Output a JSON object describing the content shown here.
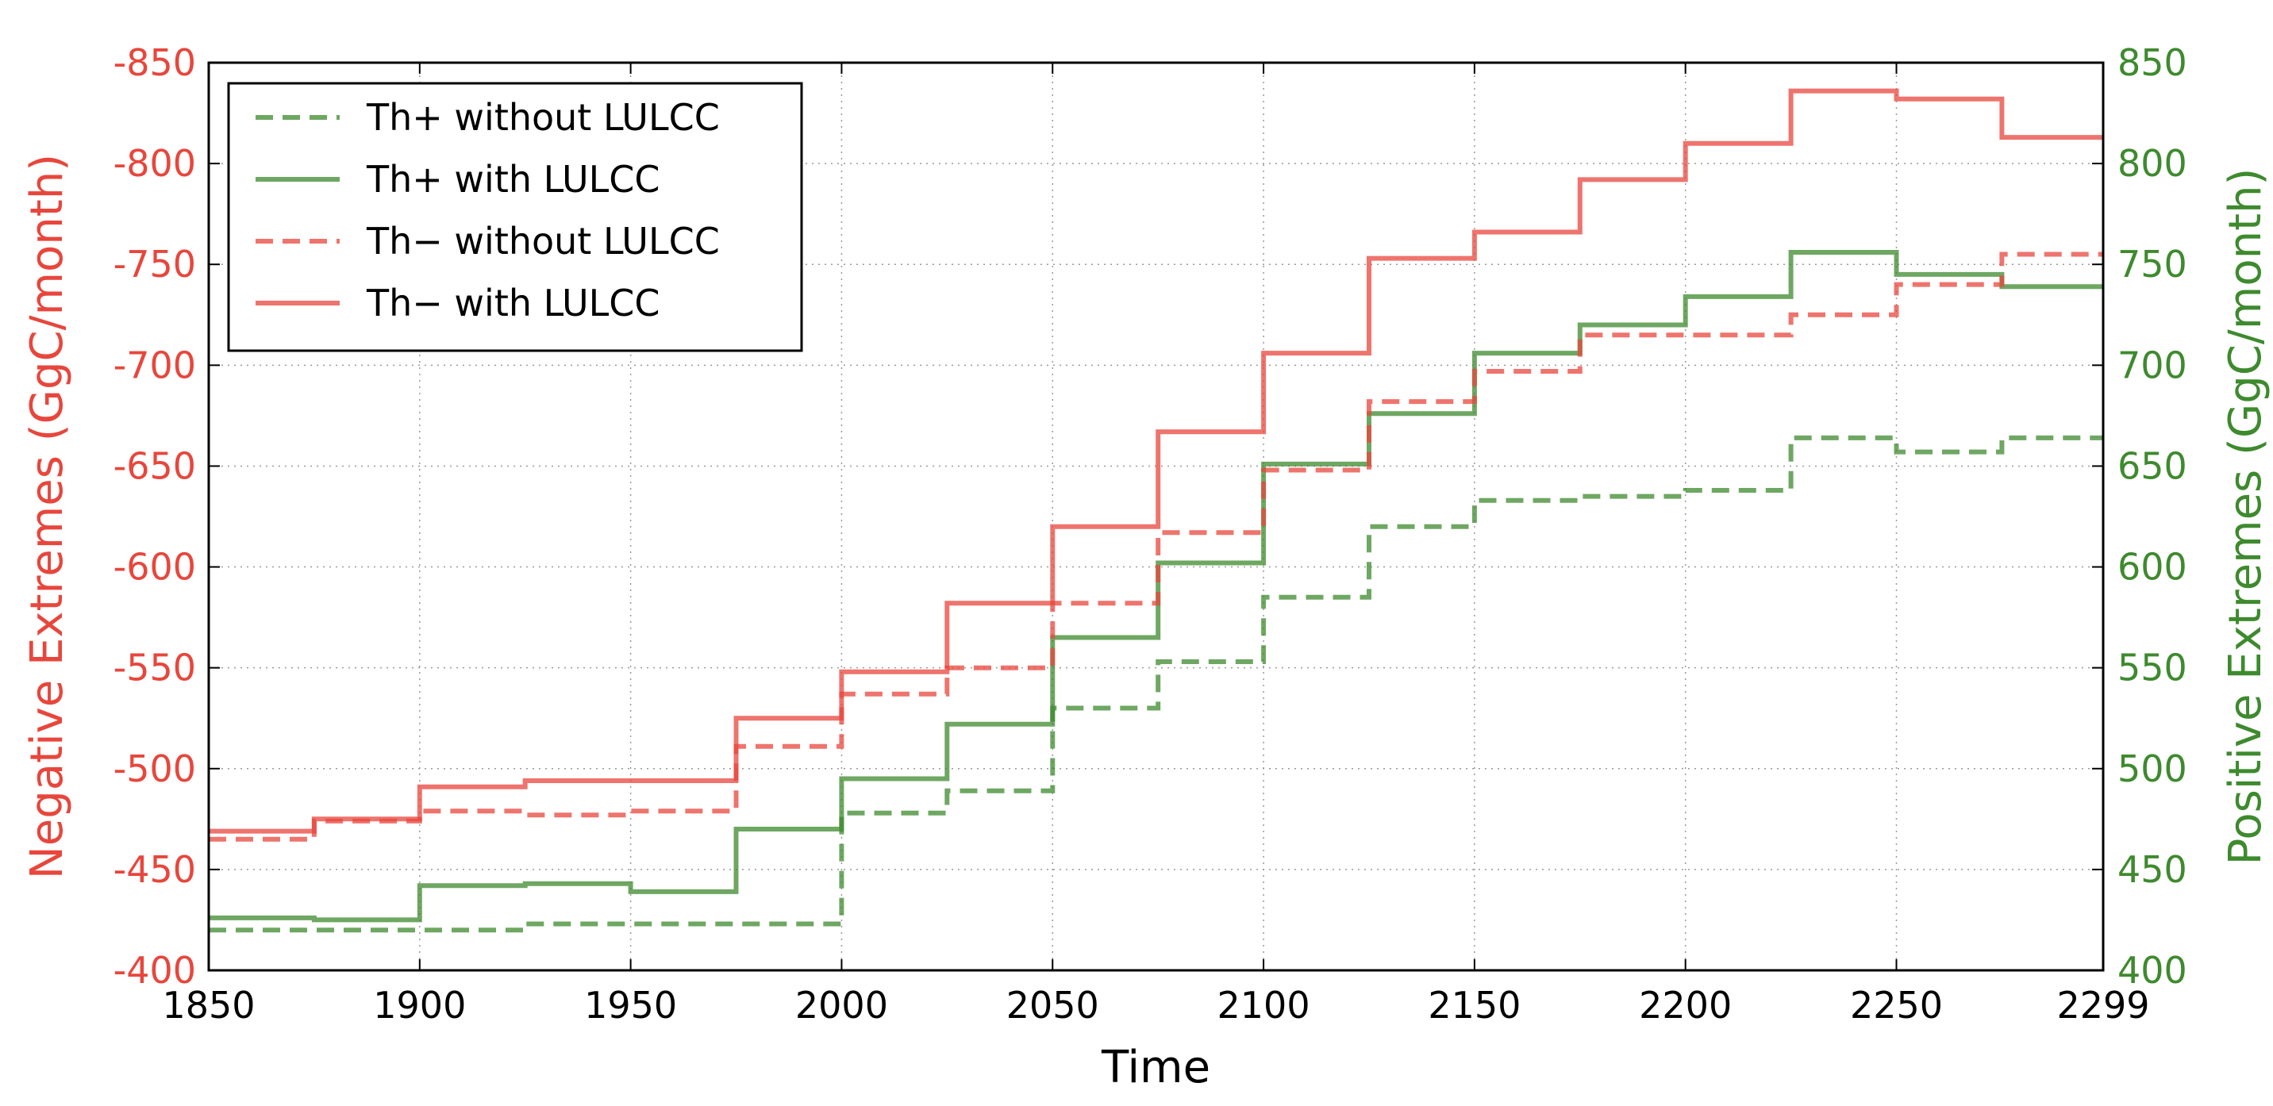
{
  "chart_data": {
    "type": "line",
    "step": true,
    "xlabel": "Time",
    "ylabel_left": "Negative Extremes (GgC/month)",
    "ylabel_right": "Positive Extremes (GgC/month)",
    "xlim": [
      1850,
      2299
    ],
    "ylim_left": [
      -400,
      -850
    ],
    "ylim_right": [
      400,
      850
    ],
    "xticks": [
      1850,
      1900,
      1950,
      2000,
      2050,
      2100,
      2150,
      2200,
      2250,
      2299
    ],
    "yticks_left": [
      -400,
      -450,
      -500,
      -550,
      -600,
      -650,
      -700,
      -750,
      -800,
      -850
    ],
    "yticks_right": [
      400,
      450,
      500,
      550,
      600,
      650,
      700,
      750,
      800,
      850
    ],
    "grid": true,
    "legend_position": "top-left",
    "x": [
      1850,
      1875,
      1900,
      1925,
      1950,
      1975,
      2000,
      2025,
      2050,
      2075,
      2100,
      2125,
      2150,
      2175,
      2200,
      2225,
      2250,
      2275
    ],
    "x_end": 2299,
    "series": [
      {
        "name": "Th+ without LULCC",
        "axis": "right",
        "style": "dashed",
        "color": "#3e8a2e",
        "values": [
          420,
          420,
          420,
          423,
          423,
          423,
          478,
          489,
          530,
          553,
          585,
          620,
          633,
          635,
          638,
          664,
          657,
          664
        ]
      },
      {
        "name": "Th+ with LULCC",
        "axis": "right",
        "style": "solid",
        "color": "#3e8a2e",
        "values": [
          426,
          425,
          442,
          443,
          439,
          470,
          495,
          522,
          565,
          602,
          651,
          676,
          706,
          720,
          734,
          756,
          745,
          739
        ]
      },
      {
        "name": "Th− without LULCC",
        "axis": "left",
        "style": "dashed",
        "color": "#e8463c",
        "values": [
          -465,
          -474,
          -479,
          -477,
          -479,
          -511,
          -537,
          -550,
          -582,
          -617,
          -648,
          -682,
          -697,
          -715,
          -715,
          -725,
          -740,
          -755
        ]
      },
      {
        "name": "Th− with LULCC",
        "axis": "left",
        "style": "solid",
        "color": "#e8463c",
        "values": [
          -469,
          -475,
          -491,
          -494,
          -494,
          -525,
          -548,
          -582,
          -620,
          -667,
          -706,
          -753,
          -766,
          -792,
          -810,
          -836,
          -832,
          -813
        ]
      }
    ]
  },
  "colors": {
    "left_axis": "#e8463c",
    "right_axis": "#3e8a2e",
    "grid": "#999999",
    "frame": "#000000"
  }
}
